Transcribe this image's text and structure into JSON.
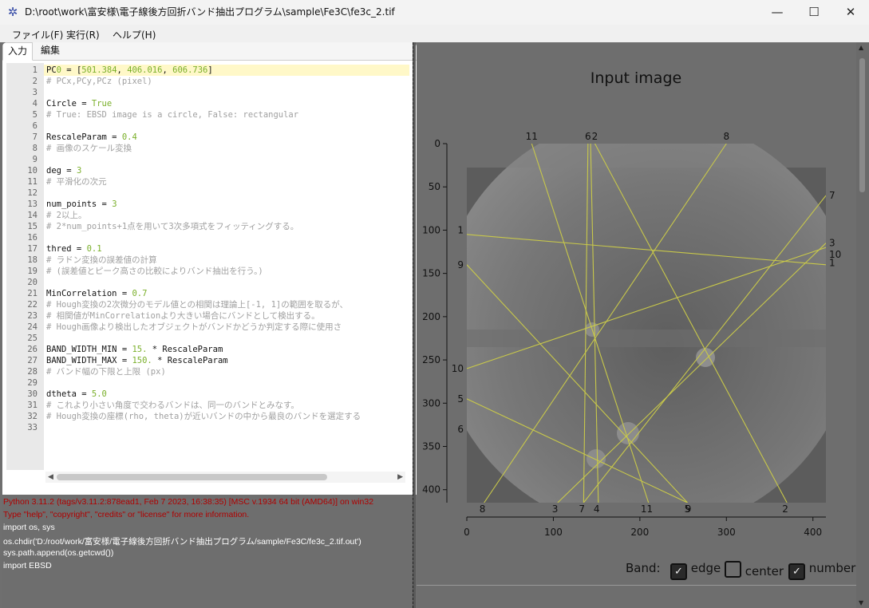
{
  "window": {
    "title": "D:\\root\\work\\富安様\\電子線後方回折バンド抽出プログラム\\sample\\Fe3C\\fe3c_2.tif",
    "minimize_glyph": "—",
    "maximize_glyph": "☐",
    "close_glyph": "✕"
  },
  "menu": [
    "ファイル(F)",
    "実行(R)",
    "ヘルプ(H)"
  ],
  "tabs": [
    "入力",
    "編集"
  ],
  "code_lines": [
    "PC0 = [501.384, 406.016, 606.736]",
    "# PCx,PCy,PCz (pixel)",
    "",
    "Circle = True",
    "# True: EBSD image is a circle, False: rectangular",
    "",
    "RescaleParam = 0.4",
    "# 画像のスケール変換",
    "",
    "deg = 3",
    "# 平滑化の次元",
    "",
    "num_points = 3",
    "# 2以上。",
    "# 2*num_points+1点を用いて3次多項式をフィッティングする。",
    "",
    "thred = 0.1",
    "# ラドン変換の誤差値の計算",
    "# (誤差値とピーク高さの比較によりバンド抽出を行う。)",
    "",
    "MinCorrelation = 0.7",
    "# Hough変換の2次微分のモデル値との相関は理論上[-1, 1]の範囲を取るが、",
    "# 相関値がMinCorrelationより大きい場合にバンドとして検出する。",
    "# Hough画像より検出したオブジェクトがバンドかどうか判定する際に使用さ",
    "",
    "BAND_WIDTH_MIN = 15. * RescaleParam",
    "BAND_WIDTH_MAX = 150. * RescaleParam",
    "# バンド幅の下限と上限 (px)",
    "",
    "dtheta = 5.0",
    "# これより小さい角度で交わるバンドは、同一のバンドとみなす。",
    "# Hough変換の座標(rho, theta)が近いバンドの中から最良のバンドを選定する",
    ""
  ],
  "console": [
    "Python 3.11.2 (tags/v3.11.2:878ead1, Feb  7 2023, 16:38:35) [MSC v.1934 64 bit (AMD64)] on win32",
    "Type \"help\", \"copyright\", \"credits\" or \"license\" for more information.",
    "import os, sys",
    "os.chdir('D:/root/work/富安様/電子線後方回折バンド抽出プログラム/sample/Fe3C/fe3c_2.tif.out')",
    "sys.path.append(os.getcwd())",
    "import EBSD"
  ],
  "plot": {
    "title": "Input image",
    "xticks": [
      0,
      100,
      200,
      300,
      400
    ],
    "yticks": [
      0,
      50,
      100,
      150,
      200,
      250,
      300,
      350,
      400
    ],
    "xlim": [
      0,
      415
    ],
    "ylim": [
      415,
      0
    ],
    "band_color": "#c8c84a",
    "bands": [
      {
        "label": "11",
        "top": "11",
        "x1": 75,
        "y1": 0,
        "x2": 210,
        "y2": 415
      },
      {
        "label": "6",
        "top": "6",
        "x1": 140,
        "y1": 0,
        "x2": 135,
        "y2": 415
      },
      {
        "label": "2",
        "top": "2",
        "x1": 148,
        "y1": 0,
        "x2": 370,
        "y2": 415
      },
      {
        "label": "8",
        "top": "8",
        "x1": 300,
        "y1": 0,
        "x2": 20,
        "y2": 415
      },
      {
        "label": "4",
        "top": "",
        "x1": 143,
        "y1": 0,
        "x2": 152,
        "y2": 415
      },
      {
        "label": "5",
        "top": "",
        "x1": 0,
        "y1": 295,
        "x2": 255,
        "y2": 415
      },
      {
        "label": "7",
        "top": "",
        "x1": 415,
        "y1": 60,
        "x2": 135,
        "y2": 415
      },
      {
        "label": "3",
        "top": "",
        "x1": 415,
        "y1": 115,
        "x2": 105,
        "y2": 415
      },
      {
        "label": "10",
        "top": "",
        "x1": 0,
        "y1": 260,
        "x2": 415,
        "y2": 120
      },
      {
        "label": "1",
        "top": "",
        "x1": 0,
        "y1": 105,
        "x2": 415,
        "y2": 140
      },
      {
        "label": "9",
        "top": "",
        "x1": 0,
        "y1": 140,
        "x2": 255,
        "y2": 415
      }
    ],
    "left_labels": [
      "1",
      "9",
      "10",
      "5",
      "6"
    ],
    "right_labels": [
      "7",
      "3",
      "10",
      "1"
    ],
    "bottom_labels": [
      "8",
      "3",
      "7",
      "4",
      "11",
      "5",
      "9",
      "2"
    ]
  },
  "band_controls": {
    "label": "Band:",
    "edge": {
      "label": "edge",
      "checked": true
    },
    "center": {
      "label": "center",
      "checked": false
    },
    "number": {
      "label": "number",
      "checked": true
    }
  }
}
